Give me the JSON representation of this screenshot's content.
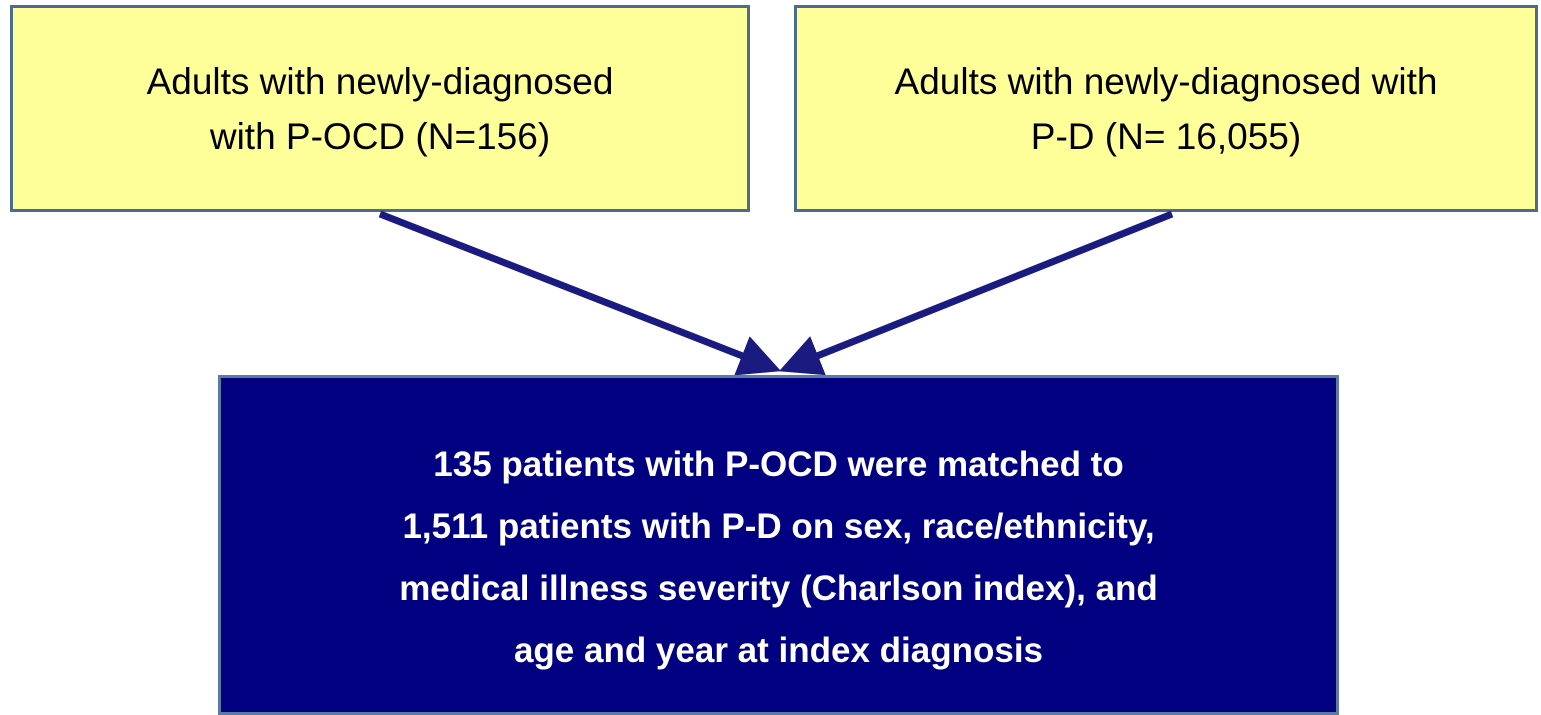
{
  "nodes": [
    {
      "lines": [
        "Adults with newly-diagnosed",
        "with P-OCD (N=156)"
      ]
    },
    {
      "lines": [
        "Adults with newly-diagnosed with",
        "P-D (N= 16,055)"
      ]
    },
    {
      "lines": [
        "135 patients with P-OCD were matched to",
        "1,511 patients with P-D on sex, race/ethnicity,",
        "medical illness severity (Charlson index), and",
        "age and year at index diagnosis"
      ]
    }
  ]
}
